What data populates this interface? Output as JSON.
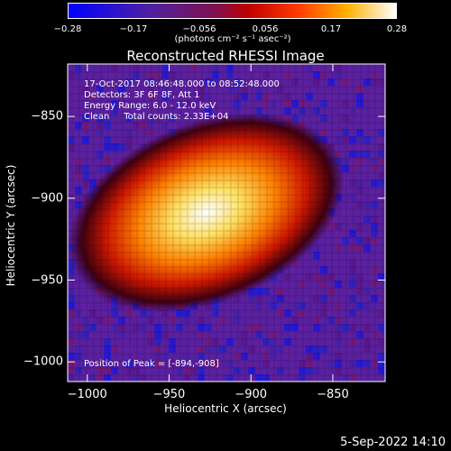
{
  "colorbar": {
    "ticks": [
      "−0.28",
      "−0.17",
      "−0.056",
      "0.056",
      "0.17",
      "0.28"
    ],
    "units": "(photons cm⁻² s⁻¹ asec⁻²)",
    "colors": [
      "#0000ff",
      "#3a1fb0",
      "#6a1c7a",
      "#a0000a",
      "#e02000",
      "#ff7a00",
      "#ffe040",
      "#ffffff"
    ]
  },
  "chart_data": {
    "type": "heatmap",
    "title": "Reconstructed RHESSI Image",
    "xlabel": "Heliocentric X (arcsec)",
    "ylabel": "Heliocentric Y (arcsec)",
    "xlim": [
      -1012,
      -818
    ],
    "ylim": [
      -1012,
      -818
    ],
    "x_ticks": [
      -1000,
      -950,
      -900,
      -850
    ],
    "y_ticks": [
      -850,
      -900,
      -950,
      -1000
    ],
    "value_range": [
      -0.28,
      0.28
    ],
    "peak": [
      -894,
      -908
    ],
    "annotations": [
      "17-Oct-2017 08:46:48.000 to 08:52:48.000",
      "Detectors: 3F 6F 8F, Att 1",
      "Energy Range: 6.0 - 12.0 keV",
      "Clean     Total counts: 2.33E+04"
    ],
    "peak_label": "Position of Peak = [-894,-908]"
  },
  "footer": {
    "timestamp": "5-Sep-2022 14:10"
  }
}
